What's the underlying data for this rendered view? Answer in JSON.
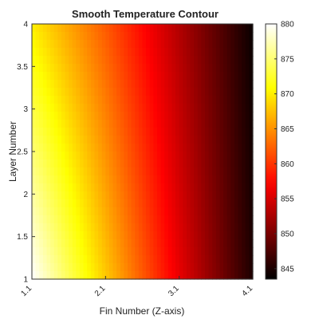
{
  "chart_data": {
    "type": "heatmap",
    "title": "Smooth Temperature Contour",
    "xlabel": "Fin Number (Z-axis)",
    "ylabel": "Layer Number",
    "x_ticks": [
      "1.1",
      "2.1",
      "3.1",
      "4.1"
    ],
    "y_ticks": [
      "1",
      "1.5",
      "2",
      "2.5",
      "3",
      "3.5",
      "4"
    ],
    "xlim": [
      1.1,
      4.1
    ],
    "ylim": [
      1,
      4
    ],
    "colorbar": {
      "colormap": "hot",
      "range": [
        843.5,
        880
      ],
      "ticks": [
        "845",
        "850",
        "855",
        "860",
        "865",
        "870",
        "875",
        "880"
      ]
    },
    "description_points": {
      "x": [
        1.1,
        2.1,
        3.1,
        4.1
      ],
      "y": [
        1,
        4
      ],
      "values_at_y1": [
        880,
        868,
        856,
        845
      ],
      "values_at_y4": [
        870,
        862,
        853,
        844
      ]
    },
    "grid": false,
    "colors": {
      "border": "#333333",
      "text": "#222222",
      "background": "#ffffff"
    }
  }
}
